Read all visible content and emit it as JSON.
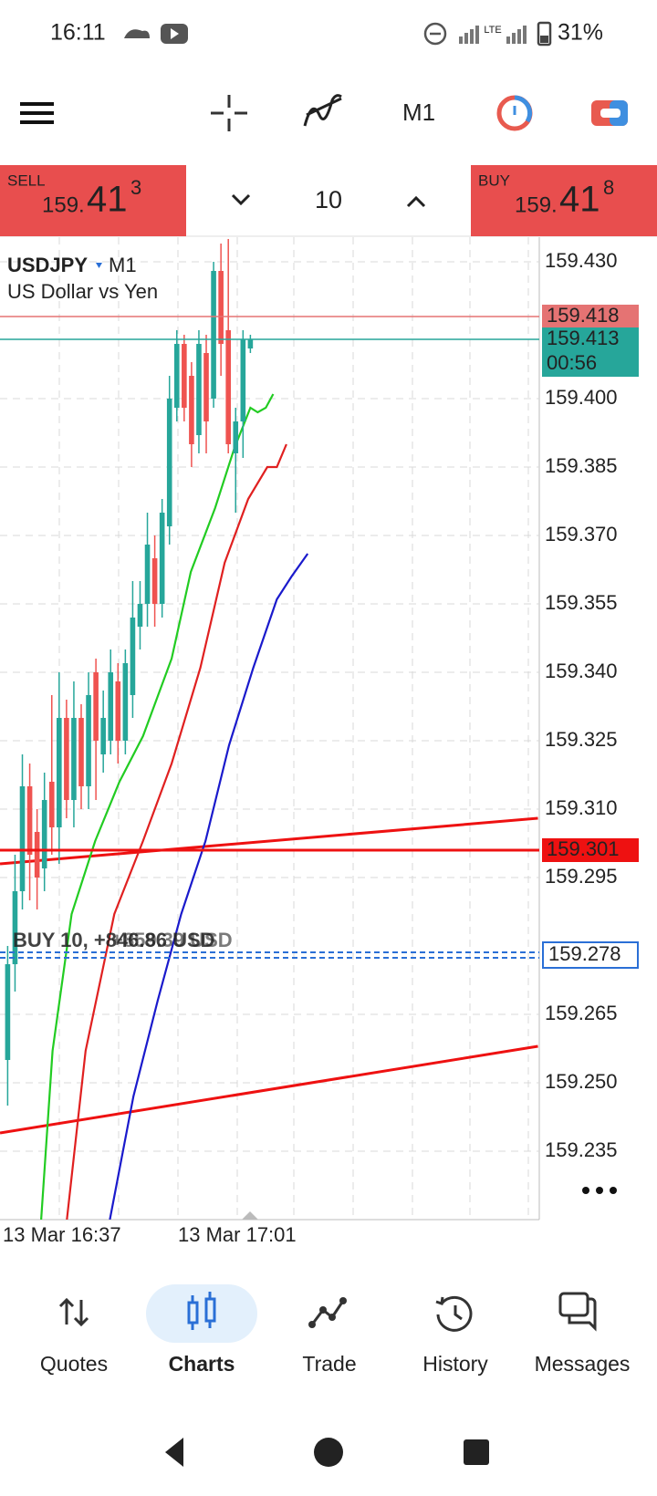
{
  "status_bar": {
    "time": "16:11",
    "network": "LTE",
    "battery": "31%"
  },
  "toolbar": {
    "timeframe": "M1"
  },
  "trade_panel": {
    "sell": {
      "label": "SELL",
      "price_prefix": "159.",
      "price_main": "41",
      "price_sup": "3"
    },
    "volume": "10",
    "buy": {
      "label": "BUY",
      "price_prefix": "159.",
      "price_main": "41",
      "price_sup": "8"
    }
  },
  "chart": {
    "type": "candlestick",
    "symbol": "USDJPY",
    "timeframe": "M1",
    "description": "US Dollar vs Yen",
    "yticks": [
      {
        "value": 159.43,
        "label": "159.430"
      },
      {
        "value": 159.4,
        "label": "159.400"
      },
      159.385,
      {
        "value": 159.37,
        "label": "159.370"
      },
      159.355,
      {
        "value": 159.34,
        "label": "159.340"
      },
      159.325,
      {
        "value": 159.31,
        "label": "159.310"
      },
      159.295,
      159.265,
      {
        "value": 159.25,
        "label": "159.250"
      },
      159.235
    ],
    "up_color": "#26a69a",
    "down_color": "#ef5350",
    "candles": [
      [
        159.255,
        159.28,
        159.245,
        159.276
      ],
      [
        159.276,
        159.3,
        159.27,
        159.292
      ],
      [
        159.292,
        159.322,
        159.288,
        159.315
      ],
      [
        159.315,
        159.32,
        159.29,
        159.3
      ],
      [
        159.305,
        159.31,
        159.288,
        159.295
      ],
      [
        159.297,
        159.318,
        159.292,
        159.312
      ],
      [
        159.316,
        159.335,
        159.3,
        159.306
      ],
      [
        159.306,
        159.34,
        159.298,
        159.33
      ],
      [
        159.33,
        159.334,
        159.308,
        159.312
      ],
      [
        159.312,
        159.338,
        159.306,
        159.33
      ],
      [
        159.33,
        159.333,
        159.31,
        159.315
      ],
      [
        159.315,
        159.34,
        159.31,
        159.335
      ],
      [
        159.34,
        159.343,
        159.312,
        159.325
      ],
      [
        159.322,
        159.336,
        159.318,
        159.33
      ],
      [
        159.325,
        159.345,
        159.322,
        159.34
      ],
      [
        159.338,
        159.342,
        159.32,
        159.325
      ],
      [
        159.325,
        159.345,
        159.322,
        159.342
      ],
      [
        159.335,
        159.36,
        159.33,
        159.352
      ],
      [
        159.35,
        159.36,
        159.345,
        159.355
      ],
      [
        159.355,
        159.375,
        159.35,
        159.368
      ],
      [
        159.365,
        159.37,
        159.35,
        159.355
      ],
      [
        159.355,
        159.378,
        159.352,
        159.375
      ],
      [
        159.372,
        159.405,
        159.368,
        159.4
      ],
      [
        159.398,
        159.415,
        159.395,
        159.412
      ],
      [
        159.412,
        159.414,
        159.395,
        159.398
      ],
      [
        159.405,
        159.408,
        159.385,
        159.39
      ],
      [
        159.392,
        159.415,
        159.388,
        159.412
      ],
      [
        159.41,
        159.414,
        159.388,
        159.395
      ],
      [
        159.4,
        159.43,
        159.398,
        159.428
      ],
      [
        159.428,
        159.434,
        159.405,
        159.412
      ],
      [
        159.415,
        159.435,
        159.388,
        159.39
      ],
      [
        159.388,
        159.398,
        159.375,
        159.395
      ],
      [
        159.395,
        159.415,
        159.387,
        159.413
      ],
      [
        159.411,
        159.414,
        159.41,
        159.413
      ]
    ],
    "moving_averages": [
      {
        "color": "#22cc22",
        "x": [
          4.55,
          6.1,
          8.7,
          11.9,
          15.2,
          18.4,
          22.3,
          24.9,
          28.2,
          30.8,
          33,
          34,
          35.1,
          36.1
        ],
        "values": [
          159.22,
          159.257,
          159.287,
          159.303,
          159.316,
          159.326,
          159.343,
          159.362,
          159.376,
          159.389,
          159.398,
          159.397,
          159.398,
          159.401
        ]
      },
      {
        "color": "#e02020",
        "x": [
          8.05,
          10.6,
          14.5,
          18.4,
          22.3,
          26.2,
          29.5,
          32.7,
          35.3,
          36.6,
          37.9
        ],
        "values": [
          159.22,
          159.257,
          159.287,
          159.303,
          159.32,
          159.341,
          159.364,
          159.378,
          159.385,
          159.385,
          159.39
        ]
      },
      {
        "color": "#1a1acc",
        "x": [
          13.9,
          17.1,
          20.4,
          23.6,
          26.9,
          30.1,
          33.4,
          36.6,
          38.6,
          40.8
        ],
        "values": [
          159.22,
          159.247,
          159.268,
          159.287,
          159.303,
          159.324,
          159.341,
          159.356,
          159.361,
          159.366
        ]
      }
    ],
    "trendlines": [
      {
        "color": "#ee1111",
        "x": [
          -1.04,
          72.1
        ],
        "values": [
          159.298,
          159.308
        ]
      },
      {
        "color": "#ee1111",
        "x": [
          -1.04,
          72.1
        ],
        "values": [
          159.239,
          159.258
        ]
      }
    ],
    "levels": [
      {
        "value": 159.418,
        "color": "#e57373",
        "style": "solid"
      },
      {
        "value": 159.413,
        "color": "#26a69a",
        "style": "solid"
      },
      {
        "value": 159.301,
        "color": "#ee1111",
        "style": "solid"
      },
      {
        "value": 159.278,
        "color": "#2a6fd6",
        "style": "dashed"
      }
    ],
    "countdown": "00:56",
    "position_label": "BUY 10, +846.86 USD",
    "position_label_ghost": "+859.39 USD",
    "time_labels": [
      "13 Mar 16:37",
      "13 Mar 17:01"
    ]
  },
  "nav": {
    "items": [
      "Quotes",
      "Charts",
      "Trade",
      "History",
      "Messages"
    ],
    "active": 1
  }
}
